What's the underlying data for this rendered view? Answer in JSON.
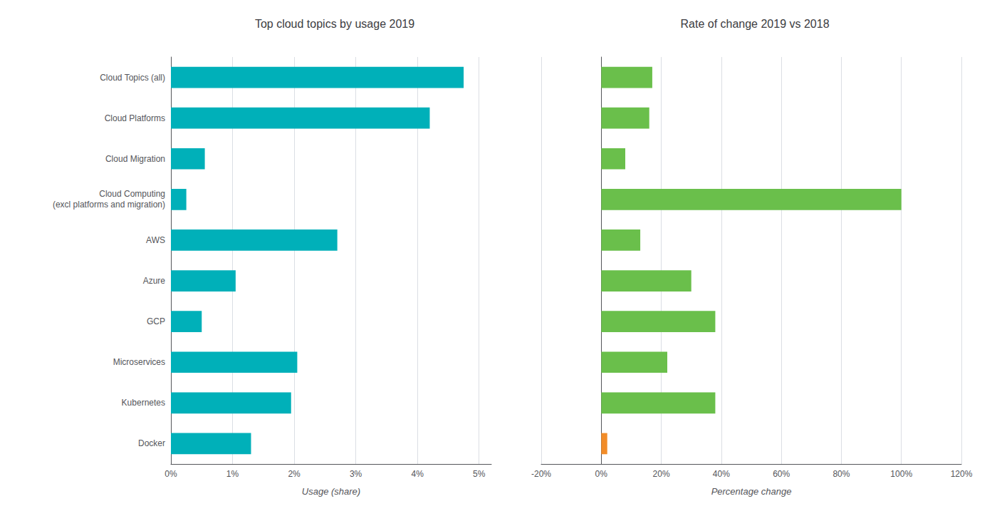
{
  "chart_data": [
    {
      "type": "bar",
      "orientation": "horizontal",
      "title": "Top cloud topics by usage 2019",
      "xlabel": "Usage (share)",
      "categories": [
        "Cloud Topics (all)",
        "Cloud Platforms",
        "Cloud Migration",
        "Cloud Computing\n(excl platforms and migration)",
        "AWS",
        "Azure",
        "GCP",
        "Microservices",
        "Kubernetes",
        "Docker"
      ],
      "values": [
        4.75,
        4.2,
        0.55,
        0.25,
        2.7,
        1.05,
        0.5,
        2.05,
        1.95,
        1.3
      ],
      "color": "#00b0b9",
      "xlim": [
        0,
        5.2
      ],
      "xticks": [
        {
          "value": 0,
          "label": "0%"
        },
        {
          "value": 1,
          "label": "1%"
        },
        {
          "value": 2,
          "label": "2%"
        },
        {
          "value": 3,
          "label": "3%"
        },
        {
          "value": 4,
          "label": "4%"
        },
        {
          "value": 5,
          "label": "5%"
        }
      ],
      "grid": true
    },
    {
      "type": "bar",
      "orientation": "horizontal",
      "title": "Rate of change 2019 vs 2018",
      "xlabel": "Percentage change",
      "categories": [
        "Cloud Topics (all)",
        "Cloud Platforms",
        "Cloud Migration",
        "Cloud Computing\n(excl platforms and migration)",
        "AWS",
        "Azure",
        "GCP",
        "Microservices",
        "Kubernetes",
        "Docker"
      ],
      "values": [
        17,
        16,
        8,
        100,
        13,
        30,
        38,
        22,
        38,
        2
      ],
      "colors": [
        "#6abf4b",
        "#6abf4b",
        "#6abf4b",
        "#6abf4b",
        "#6abf4b",
        "#6abf4b",
        "#6abf4b",
        "#6abf4b",
        "#6abf4b",
        "#f28c28"
      ],
      "xlim": [
        -20,
        120
      ],
      "xticks": [
        {
          "value": -20,
          "label": "-20%"
        },
        {
          "value": 0,
          "label": "0%"
        },
        {
          "value": 20,
          "label": "20%"
        },
        {
          "value": 40,
          "label": "40%"
        },
        {
          "value": 60,
          "label": "60%"
        },
        {
          "value": 80,
          "label": "80%"
        },
        {
          "value": 100,
          "label": "100%"
        },
        {
          "value": 120,
          "label": "120%"
        }
      ],
      "grid": true,
      "tick_labels": "x"
    }
  ]
}
